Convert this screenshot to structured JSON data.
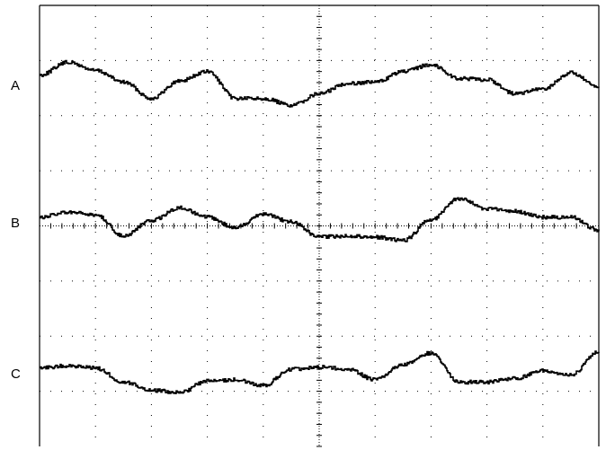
{
  "chart_data": {
    "type": "line",
    "title": "",
    "xlabel": "",
    "ylabel": "",
    "grid": true,
    "x": [
      0.0,
      0.05,
      0.1,
      0.15,
      0.2,
      0.25,
      0.3,
      0.35,
      0.4,
      0.45,
      0.5,
      0.55,
      0.6,
      0.65,
      0.7,
      0.75,
      0.8,
      0.85,
      0.9,
      0.95,
      1.0
    ],
    "series": [
      {
        "name": "A",
        "values": [
          0.4,
          0.95,
          0.6,
          0.1,
          -0.6,
          0.15,
          0.55,
          -0.6,
          -0.6,
          -0.9,
          -0.4,
          0.05,
          0.1,
          0.55,
          0.85,
          0.25,
          0.2,
          -0.4,
          -0.2,
          0.5,
          -0.15
        ]
      },
      {
        "name": "B",
        "values": [
          0.2,
          0.4,
          0.3,
          -0.6,
          0.05,
          0.6,
          0.2,
          -0.25,
          0.35,
          0.0,
          -0.65,
          -0.6,
          -0.65,
          -0.8,
          0.1,
          1.0,
          0.55,
          0.45,
          0.2,
          0.2,
          -0.35
        ]
      },
      {
        "name": "C",
        "values": [
          0.2,
          0.3,
          0.2,
          -0.4,
          -0.75,
          -0.85,
          -0.35,
          -0.3,
          -0.55,
          0.15,
          0.25,
          0.15,
          -0.3,
          0.35,
          0.85,
          -0.4,
          -0.4,
          -0.25,
          0.1,
          -0.1,
          0.9
        ]
      }
    ],
    "colors": {
      "trace": "#000000",
      "grid": "#000000",
      "background": "#ffffff"
    }
  }
}
